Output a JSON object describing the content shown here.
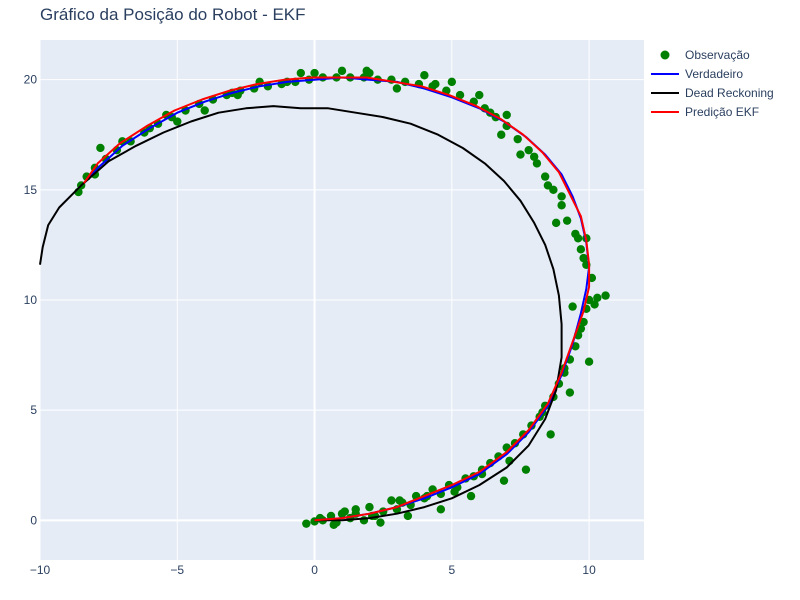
{
  "chart_data": {
    "type": "scatter",
    "title": "Gráfico da Posição do Robot - EKF",
    "xlabel": "",
    "ylabel": "",
    "xlim": [
      -10,
      12
    ],
    "ylim": [
      -1.8,
      21.8
    ],
    "x_ticks": [
      -10,
      -5,
      0,
      5,
      10
    ],
    "y_ticks": [
      0,
      5,
      10,
      15,
      20
    ],
    "x_tick_labels": [
      "−10",
      "−5",
      "0",
      "5",
      "10"
    ],
    "y_tick_labels": [
      "0",
      "5",
      "10",
      "15",
      "20"
    ],
    "grid": true,
    "legend_position": "top-right",
    "colors": {
      "plot_bg": "#e5ecf6",
      "grid": "#ffffff",
      "observacao": "#008000",
      "verdadeiro": "#0000ff",
      "dead_reckoning": "#000000",
      "predicao_ekf": "#ff0000"
    },
    "series": [
      {
        "name": "Observação",
        "mode": "markers",
        "color": "#008000",
        "x": [
          -0.3,
          0.0,
          0.3,
          0.6,
          0.8,
          1.0,
          1.3,
          1.5,
          1.8,
          2.0,
          2.2,
          2.5,
          2.8,
          3.0,
          3.2,
          3.5,
          3.7,
          4.0,
          4.3,
          4.6,
          4.9,
          5.2,
          5.5,
          5.8,
          6.1,
          6.4,
          6.7,
          7.0,
          7.3,
          7.6,
          7.9,
          8.2,
          8.4,
          8.7,
          8.9,
          9.1,
          9.3,
          9.5,
          9.6,
          9.8,
          9.9,
          10.0,
          10.3,
          10.6,
          10.1,
          9.9,
          9.7,
          9.5,
          9.2,
          9.0,
          8.7,
          8.4,
          8.1,
          7.8,
          7.4,
          7.0,
          6.6,
          6.2,
          5.8,
          5.3,
          4.8,
          4.3,
          3.8,
          3.3,
          2.8,
          2.3,
          1.8,
          1.3,
          0.8,
          0.3,
          -0.2,
          -0.7,
          -1.2,
          -1.7,
          -2.2,
          -2.7,
          -3.2,
          -3.7,
          -4.2,
          -4.7,
          -5.2,
          -5.7,
          -6.2,
          -6.7,
          -7.2,
          -7.6,
          -8.0,
          -8.3,
          -8.5,
          -8.6,
          0.2,
          1.1,
          2.1,
          3.1,
          4.1,
          5.1,
          6.1,
          7.1,
          8.3,
          9.1,
          9.4,
          9.8,
          10.2,
          9.6,
          9.0,
          8.0,
          7.0,
          6.0,
          5.0,
          4.0,
          3.0,
          2.0,
          1.0,
          0.0,
          -1.0,
          -2.0,
          -3.0,
          -4.0,
          -5.0,
          -6.0,
          -7.0,
          -8.0,
          9.3,
          8.6,
          7.7,
          6.9,
          5.7,
          4.6,
          3.4,
          2.4,
          1.5,
          0.7,
          6.4,
          7.5,
          8.8,
          9.7,
          10.0,
          9.9,
          8.5,
          6.8,
          4.4,
          1.9,
          -0.5,
          -2.8,
          -5.4,
          -7.8
        ],
        "y": [
          -0.15,
          -0.05,
          0.0,
          0.2,
          -0.1,
          0.3,
          0.1,
          0.5,
          0.0,
          0.6,
          0.2,
          0.4,
          0.9,
          0.5,
          0.8,
          0.7,
          1.1,
          1.0,
          1.4,
          1.2,
          1.6,
          1.5,
          1.9,
          2.0,
          2.3,
          2.6,
          2.9,
          3.3,
          3.5,
          3.9,
          4.3,
          4.7,
          5.2,
          5.6,
          6.2,
          6.7,
          7.3,
          7.9,
          8.4,
          9.0,
          9.6,
          10.0,
          10.1,
          10.2,
          11.0,
          11.6,
          12.3,
          13.0,
          13.6,
          14.3,
          15.0,
          15.6,
          16.2,
          16.8,
          17.3,
          17.9,
          18.3,
          18.7,
          19.0,
          19.3,
          19.5,
          19.7,
          19.8,
          19.9,
          20.0,
          20.0,
          20.1,
          20.1,
          20.1,
          20.1,
          20.0,
          19.9,
          19.8,
          19.7,
          19.6,
          19.5,
          19.3,
          19.1,
          18.9,
          18.6,
          18.3,
          18.0,
          17.6,
          17.2,
          16.8,
          16.4,
          16.0,
          15.6,
          15.2,
          14.9,
          0.1,
          0.4,
          0.2,
          0.9,
          1.1,
          1.3,
          2.1,
          2.7,
          4.9,
          6.9,
          9.7,
          11.9,
          9.8,
          12.8,
          14.7,
          16.5,
          18.4,
          19.3,
          19.9,
          20.2,
          19.6,
          20.3,
          20.4,
          20.3,
          19.9,
          19.9,
          19.4,
          18.6,
          18.1,
          17.8,
          17.2,
          15.7,
          5.8,
          3.9,
          2.3,
          1.8,
          1.1,
          0.5,
          0.2,
          -0.1,
          0.3,
          -0.2,
          18.5,
          16.6,
          13.5,
          8.7,
          7.2,
          12.8,
          15.2,
          17.5,
          19.8,
          20.4,
          20.3,
          19.3,
          18.4,
          16.9
        ]
      },
      {
        "name": "Verdadeiro",
        "mode": "lines",
        "color": "#0000ff",
        "x": [
          0.0,
          1.0,
          2.0,
          3.0,
          4.0,
          5.0,
          6.0,
          7.0,
          7.8,
          8.5,
          9.0,
          9.4,
          9.7,
          9.9,
          10.0,
          9.9,
          9.7,
          9.4,
          9.0,
          8.4,
          7.7,
          6.9,
          6.0,
          5.0,
          4.0,
          3.0,
          2.0,
          1.0,
          0.0,
          -1.0,
          -2.0,
          -3.0,
          -4.0,
          -5.0,
          -6.0,
          -7.0,
          -7.8,
          -8.4
        ],
        "y": [
          0.0,
          0.1,
          0.3,
          0.6,
          1.0,
          1.5,
          2.1,
          3.0,
          4.0,
          5.2,
          6.6,
          8.0,
          9.4,
          10.5,
          11.5,
          12.6,
          13.7,
          14.7,
          15.7,
          16.6,
          17.4,
          18.1,
          18.7,
          19.2,
          19.6,
          19.9,
          20.0,
          20.1,
          20.0,
          19.9,
          19.7,
          19.4,
          19.0,
          18.5,
          17.8,
          17.0,
          16.1,
          15.3
        ]
      },
      {
        "name": "Dead Reckoning",
        "mode": "lines",
        "color": "#000000",
        "x": [
          0.0,
          1.0,
          2.0,
          3.0,
          4.0,
          5.0,
          6.0,
          7.0,
          7.8,
          8.4,
          8.8,
          9.0,
          9.0,
          8.9,
          8.7,
          8.4,
          8.0,
          7.5,
          6.9,
          6.2,
          5.4,
          4.5,
          3.5,
          2.5,
          1.5,
          0.5,
          -0.5,
          -1.5,
          -2.5,
          -3.5,
          -4.5,
          -5.5,
          -6.5,
          -7.5,
          -8.5,
          -9.3,
          -9.7,
          -9.9,
          -10.0
        ],
        "y": [
          0.0,
          0.0,
          0.1,
          0.3,
          0.6,
          1.0,
          1.6,
          2.4,
          3.4,
          4.6,
          5.9,
          7.4,
          8.9,
          10.2,
          11.4,
          12.5,
          13.5,
          14.5,
          15.4,
          16.2,
          16.9,
          17.5,
          18.0,
          18.3,
          18.5,
          18.7,
          18.7,
          18.8,
          18.7,
          18.5,
          18.1,
          17.6,
          17.0,
          16.3,
          15.2,
          14.2,
          13.4,
          12.4,
          11.6
        ]
      },
      {
        "name": "Predição EKF",
        "mode": "lines",
        "color": "#ff0000",
        "x": [
          0.0,
          1.0,
          2.0,
          3.0,
          4.0,
          5.0,
          6.0,
          7.0,
          7.8,
          8.5,
          9.0,
          9.4,
          9.8,
          10.0,
          10.0,
          9.9,
          9.7,
          9.3,
          8.9,
          8.3,
          7.6,
          6.8,
          5.9,
          4.9,
          3.9,
          2.9,
          1.9,
          0.9,
          -0.1,
          -1.1,
          -2.1,
          -3.1,
          -4.1,
          -5.1,
          -6.1,
          -7.1,
          -7.9,
          -8.4
        ],
        "y": [
          0.0,
          0.1,
          0.3,
          0.6,
          1.1,
          1.6,
          2.2,
          3.1,
          4.1,
          5.3,
          6.7,
          8.1,
          9.5,
          10.6,
          11.6,
          12.7,
          13.8,
          14.8,
          15.8,
          16.7,
          17.5,
          18.2,
          18.8,
          19.3,
          19.7,
          19.9,
          20.1,
          20.1,
          20.1,
          20.0,
          19.8,
          19.5,
          19.1,
          18.6,
          17.9,
          17.1,
          16.2,
          15.3
        ]
      }
    ]
  }
}
